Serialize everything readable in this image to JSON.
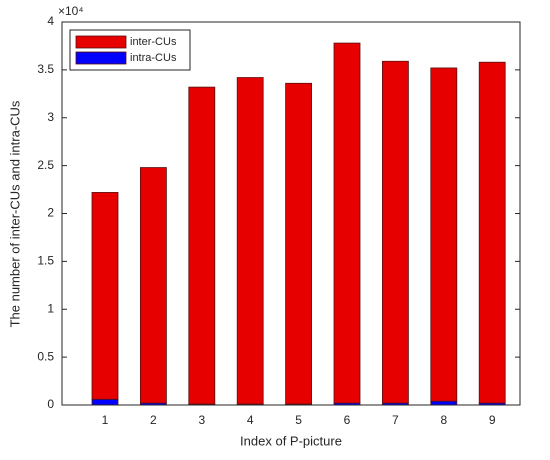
{
  "chart_data": {
    "type": "stacked-bar",
    "x_label": "Index of P-picture",
    "y_label": "The number of inter-CUs and intra-CUs",
    "y_exponent_label": "×10⁴",
    "categories": [
      "1",
      "2",
      "3",
      "4",
      "5",
      "6",
      "7",
      "8",
      "9"
    ],
    "series": [
      {
        "name": "inter-CUs",
        "color": "#e60000",
        "values": [
          2.16,
          2.46,
          3.31,
          3.41,
          3.35,
          3.76,
          3.57,
          3.48,
          3.56
        ]
      },
      {
        "name": "intra-CUs",
        "color": "#0000ff",
        "values": [
          0.06,
          0.02,
          0.01,
          0.01,
          0.01,
          0.02,
          0.02,
          0.04,
          0.02
        ]
      }
    ],
    "stack_order": [
      "intra-CUs",
      "inter-CUs"
    ],
    "ylim": [
      0,
      4
    ],
    "yticks": [
      0,
      0.5,
      1,
      1.5,
      2,
      2.5,
      3,
      3.5,
      4
    ],
    "legend": "upper-left"
  }
}
